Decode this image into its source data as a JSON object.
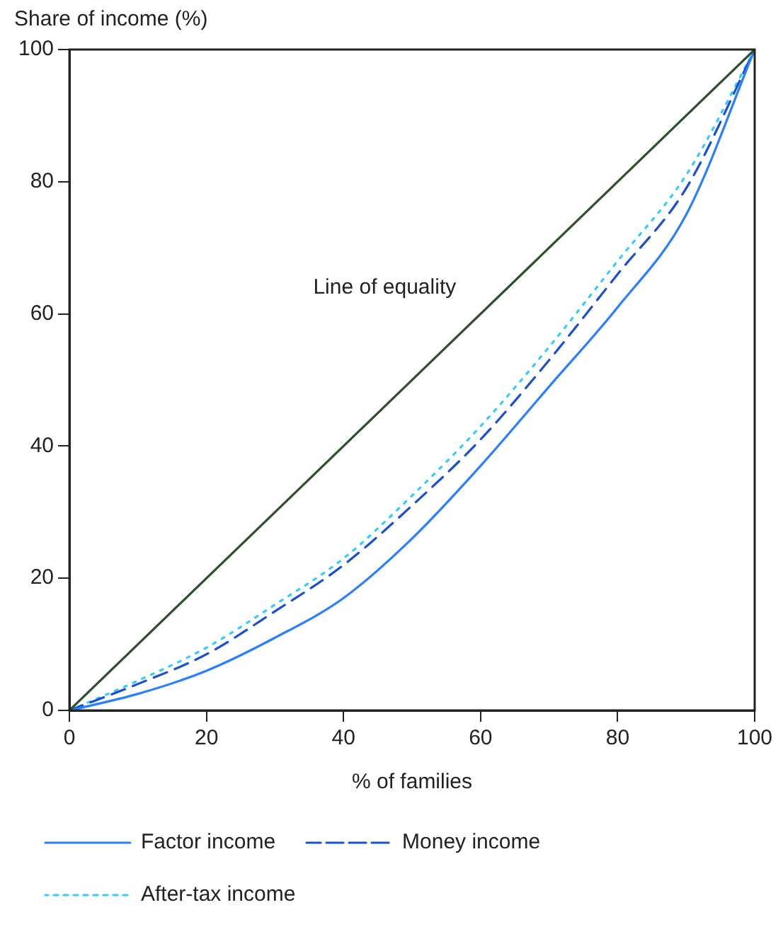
{
  "chart_data": {
    "type": "line",
    "ylabel": "Share of income (%)",
    "xlabel": "% of families",
    "xlim": [
      0,
      100
    ],
    "xticks": [
      0,
      20,
      40,
      60,
      80,
      100
    ],
    "ylim": [
      0,
      100
    ],
    "yticks": [
      0,
      20,
      40,
      60,
      80,
      100
    ],
    "grid": false,
    "annotations": [
      "Line of equality"
    ],
    "legend": "bottom",
    "marker": "none",
    "series": [
      {
        "color": "#2f4f2f",
        "x": [
          0,
          100
        ],
        "values": [
          0,
          100
        ],
        "line_style": "solid"
      },
      {
        "name": "Factor income",
        "color": "#2a7fff",
        "x": [
          0,
          10,
          20,
          30,
          40,
          50,
          60,
          70,
          80,
          90,
          100
        ],
        "values": [
          0,
          2.5,
          6,
          11,
          17,
          26,
          37,
          49,
          61,
          75,
          100
        ],
        "line_style": "solid"
      },
      {
        "name": "Money income",
        "color": "#1a4fd0",
        "x": [
          0,
          10,
          20,
          30,
          40,
          50,
          60,
          70,
          80,
          90,
          100
        ],
        "values": [
          0,
          4,
          8.5,
          15,
          22,
          31,
          41,
          53,
          66,
          79,
          100
        ],
        "line_style": "dashed"
      },
      {
        "name": "After-tax income",
        "color": "#33ccff",
        "x": [
          0,
          10,
          20,
          30,
          40,
          50,
          60,
          70,
          80,
          90,
          100
        ],
        "values": [
          0,
          4.5,
          9.5,
          16,
          23,
          32.5,
          43,
          55,
          68,
          81,
          100
        ],
        "line_style": "dotted"
      }
    ]
  }
}
